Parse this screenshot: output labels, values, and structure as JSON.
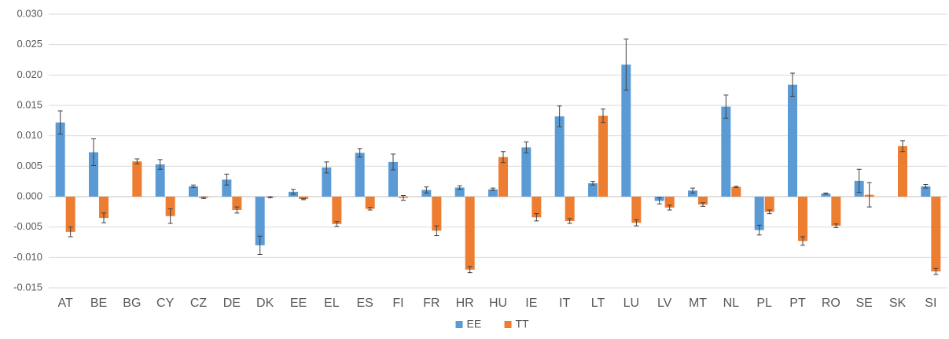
{
  "chart_data": {
    "type": "bar",
    "categories": [
      "AT",
      "BE",
      "BG",
      "CY",
      "CZ",
      "DE",
      "DK",
      "EE",
      "EL",
      "ES",
      "FI",
      "FR",
      "HR",
      "HU",
      "IE",
      "IT",
      "LT",
      "LU",
      "LV",
      "MT",
      "NL",
      "PL",
      "PT",
      "RO",
      "SE",
      "SK",
      "SI"
    ],
    "series": [
      {
        "name": "EE",
        "color": "#5b9bd5",
        "values": [
          0.0122,
          0.0073,
          null,
          0.0053,
          0.0017,
          0.0028,
          -0.008,
          0.0008,
          0.0048,
          0.0072,
          0.0057,
          0.0011,
          0.0015,
          0.0012,
          0.0081,
          0.0132,
          0.0022,
          0.0217,
          -0.0007,
          0.001,
          0.0148,
          -0.0055,
          0.0184,
          0.0005,
          0.0026,
          null,
          0.0017
        ],
        "errors": [
          0.0019,
          0.0022,
          null,
          0.0008,
          0.0002,
          0.0009,
          0.0015,
          0.0004,
          0.0009,
          0.0007,
          0.0013,
          0.0005,
          0.0003,
          0.0002,
          0.0009,
          0.0017,
          0.0003,
          0.0042,
          0.0005,
          0.0004,
          0.0019,
          0.0008,
          0.0019,
          0.0001,
          0.0019,
          null,
          0.0003
        ]
      },
      {
        "name": "TT",
        "color": "#ed7d31",
        "values": [
          -0.0058,
          -0.0035,
          0.0058,
          -0.0032,
          -0.0002,
          -0.0022,
          -0.0001,
          -0.0004,
          -0.0045,
          -0.002,
          -0.0002,
          -0.0056,
          -0.012,
          0.0065,
          -0.0034,
          -0.004,
          0.0133,
          -0.0043,
          -0.0018,
          -0.0013,
          0.0016,
          -0.0025,
          -0.0073,
          -0.0048,
          0.0003,
          0.0083,
          -0.0123
        ],
        "errors": [
          0.0008,
          0.0008,
          0.0004,
          0.0012,
          0.0001,
          0.0005,
          0.0001,
          0.0001,
          0.0004,
          0.0002,
          0.0004,
          0.0008,
          0.0005,
          0.0009,
          0.0006,
          0.0004,
          0.0011,
          0.0005,
          0.0004,
          0.0003,
          0.0001,
          0.0003,
          0.0007,
          0.0003,
          0.002,
          0.0009,
          0.0005
        ]
      }
    ],
    "ylim": [
      -0.015,
      0.03
    ],
    "yticks": [
      {
        "value": -0.015,
        "label": "-0.015"
      },
      {
        "value": -0.01,
        "label": "-0.010"
      },
      {
        "value": -0.005,
        "label": "-0.005"
      },
      {
        "value": 0,
        "label": "0.000"
      },
      {
        "value": 0.005,
        "label": "0.005"
      },
      {
        "value": 0.01,
        "label": "0.010"
      },
      {
        "value": 0.015,
        "label": "0.015"
      },
      {
        "value": 0.02,
        "label": "0.020"
      },
      {
        "value": 0.025,
        "label": "0.025"
      },
      {
        "value": 0.03,
        "label": "0.030"
      }
    ],
    "grid": true,
    "legend": "bottom"
  }
}
